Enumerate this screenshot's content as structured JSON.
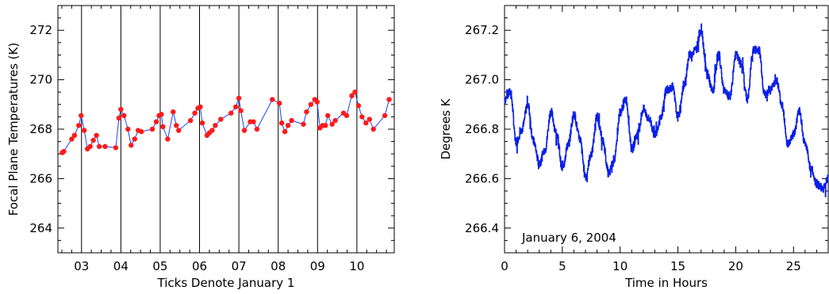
{
  "chart_data": [
    {
      "type": "scatter",
      "xlabel": "Ticks Denote January 1",
      "ylabel": "Focal Plane Temperatures (K)",
      "xlim": [
        2002.4,
        2010.95
      ],
      "ylim": [
        263.0,
        273.0
      ],
      "x_tick_values": [
        2003,
        2004,
        2005,
        2006,
        2007,
        2008,
        2009,
        2010
      ],
      "x_tick_labels": [
        "03",
        "04",
        "05",
        "06",
        "07",
        "08",
        "09",
        "10"
      ],
      "y_ticks": [
        264,
        266,
        268,
        270,
        272
      ],
      "year_lines": [
        2003,
        2004,
        2005,
        2006,
        2007,
        2008,
        2009,
        2010
      ],
      "colors": {
        "line": "#1f3fff",
        "points": "#ff1a1a",
        "year_lines": "#000000"
      },
      "series": [
        {
          "x": [
            2002.51,
            2002.55,
            2002.75,
            2002.82,
            2002.93,
            2002.99,
            2003.07,
            2003.15,
            2003.22,
            2003.3,
            2003.38,
            2003.45,
            2003.6,
            2003.87,
            2003.95,
            2004.0,
            2004.08,
            2004.18,
            2004.26,
            2004.35,
            2004.44,
            2004.52,
            2004.8,
            2004.9,
            2004.97,
            2005.03,
            2005.07,
            2005.19,
            2005.33,
            2005.41,
            2005.47,
            2005.77,
            2005.88,
            2005.96,
            2006.02,
            2006.07,
            2006.19,
            2006.25,
            2006.32,
            2006.4,
            2006.54,
            2006.8,
            2006.92,
            2007.0,
            2007.05,
            2007.14,
            2007.29,
            2007.37,
            2007.46,
            2007.85,
            2008.03,
            2008.09,
            2008.17,
            2008.25,
            2008.34,
            2008.64,
            2008.72,
            2008.83,
            2008.93,
            2008.99,
            2009.06,
            2009.13,
            2009.2,
            2009.26,
            2009.37,
            2009.45,
            2009.66,
            2009.74,
            2009.87,
            2009.95,
            2010.04,
            2010.13,
            2010.23,
            2010.32,
            2010.42,
            2010.71,
            2010.82
          ],
          "y": [
            267.05,
            267.1,
            267.6,
            267.75,
            268.15,
            268.55,
            267.95,
            267.2,
            267.3,
            267.55,
            267.75,
            267.3,
            267.3,
            267.25,
            268.45,
            268.8,
            268.55,
            268.0,
            267.35,
            267.6,
            267.95,
            267.9,
            268.0,
            268.3,
            268.55,
            268.6,
            268.1,
            267.6,
            268.7,
            268.15,
            267.95,
            268.35,
            268.65,
            268.85,
            268.9,
            268.25,
            267.75,
            267.85,
            267.95,
            268.15,
            268.4,
            268.65,
            268.9,
            269.25,
            268.75,
            267.95,
            268.3,
            268.3,
            268.0,
            269.2,
            269.05,
            268.25,
            267.9,
            268.15,
            268.35,
            268.2,
            268.7,
            269.0,
            269.2,
            269.1,
            268.05,
            268.15,
            268.15,
            268.55,
            268.2,
            268.35,
            268.65,
            268.55,
            269.35,
            269.5,
            268.95,
            268.5,
            268.25,
            268.4,
            268.0,
            268.55,
            269.2
          ]
        }
      ]
    },
    {
      "type": "line",
      "xlabel": "Time in Hours",
      "ylabel": "Degrees K",
      "xlim": [
        0,
        28
      ],
      "ylim": [
        266.3,
        267.3
      ],
      "x_ticks": [
        0,
        5,
        10,
        15,
        20,
        25
      ],
      "y_ticks": [
        266.4,
        266.6,
        266.8,
        267.0,
        267.2
      ],
      "y_tick_labels": [
        "266.4",
        "266.6",
        "266.8",
        "267.0",
        "267.2"
      ],
      "annotation": "January 6, 2004",
      "colors": {
        "line": "#0a1fe6"
      },
      "series": [
        {
          "x": [
            0,
            0.5,
            1.0,
            1.5,
            2.0,
            2.5,
            3.0,
            3.5,
            4.0,
            4.5,
            5.0,
            5.5,
            6.0,
            6.5,
            7.0,
            7.5,
            8.0,
            8.5,
            9.0,
            9.5,
            10.0,
            10.5,
            11.0,
            11.5,
            12.0,
            12.5,
            13.0,
            13.5,
            14.0,
            14.5,
            15.0,
            15.5,
            16.0,
            16.5,
            17.0,
            17.5,
            18.0,
            18.5,
            19.0,
            19.5,
            20.0,
            20.5,
            21.0,
            21.5,
            22.0,
            22.5,
            23.0,
            23.5,
            24.0,
            24.5,
            25.0,
            25.5,
            26.0,
            26.5,
            27.0,
            27.5,
            28.0
          ],
          "y": [
            266.92,
            266.95,
            266.75,
            266.8,
            266.9,
            266.75,
            266.66,
            266.72,
            266.87,
            266.78,
            266.64,
            266.74,
            266.86,
            266.76,
            266.61,
            266.7,
            266.85,
            266.75,
            266.62,
            266.68,
            266.87,
            266.92,
            266.72,
            266.78,
            266.88,
            266.84,
            266.78,
            266.84,
            266.96,
            266.97,
            266.85,
            266.97,
            267.1,
            267.12,
            267.2,
            267.03,
            266.95,
            267.1,
            266.96,
            266.93,
            267.1,
            267.06,
            266.92,
            267.12,
            267.12,
            266.94,
            266.96,
            267.0,
            266.9,
            266.74,
            266.78,
            266.87,
            266.74,
            266.64,
            266.58,
            266.56,
            266.6
          ]
        }
      ]
    }
  ]
}
